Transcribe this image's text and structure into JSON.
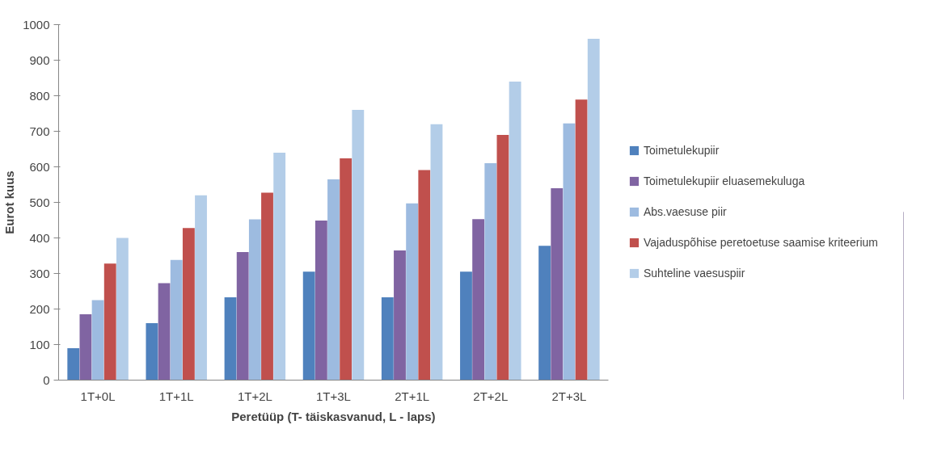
{
  "chart_data": {
    "type": "bar",
    "xlabel": "Peretüüp (T- täiskasvanud, L - laps)",
    "ylabel": "Eurot kuus",
    "categories": [
      "1T+0L",
      "1T+1L",
      "1T+2L",
      "1T+3L",
      "2T+1L",
      "2T+2L",
      "2T+3L"
    ],
    "series": [
      {
        "name": "Toimetulekupiir",
        "color": "#4f81bd",
        "values": [
          90,
          160,
          233,
          305,
          233,
          305,
          378
        ]
      },
      {
        "name": "Toimetulekupiir eluasemekuluga",
        "color": "#8064a2",
        "values": [
          185,
          273,
          360,
          449,
          365,
          453,
          540
        ]
      },
      {
        "name": "Abs.vaesuse piir",
        "color": "#9dbbe0",
        "values": [
          225,
          338,
          452,
          565,
          497,
          610,
          722
        ]
      },
      {
        "name": "Vajaduspõhise peretoetuse saamise kriteerium",
        "color": "#c0504d",
        "values": [
          328,
          428,
          527,
          624,
          591,
          690,
          789
        ]
      },
      {
        "name": "Suhteline vaesuspiir",
        "color": "#b3cde8",
        "values": [
          400,
          520,
          640,
          760,
          720,
          840,
          960
        ]
      }
    ],
    "ylim": [
      0,
      1000
    ],
    "yticks": [
      0,
      100,
      200,
      300,
      400,
      500,
      600,
      700,
      800,
      900,
      1000
    ],
    "grid": false,
    "legend": "right"
  }
}
